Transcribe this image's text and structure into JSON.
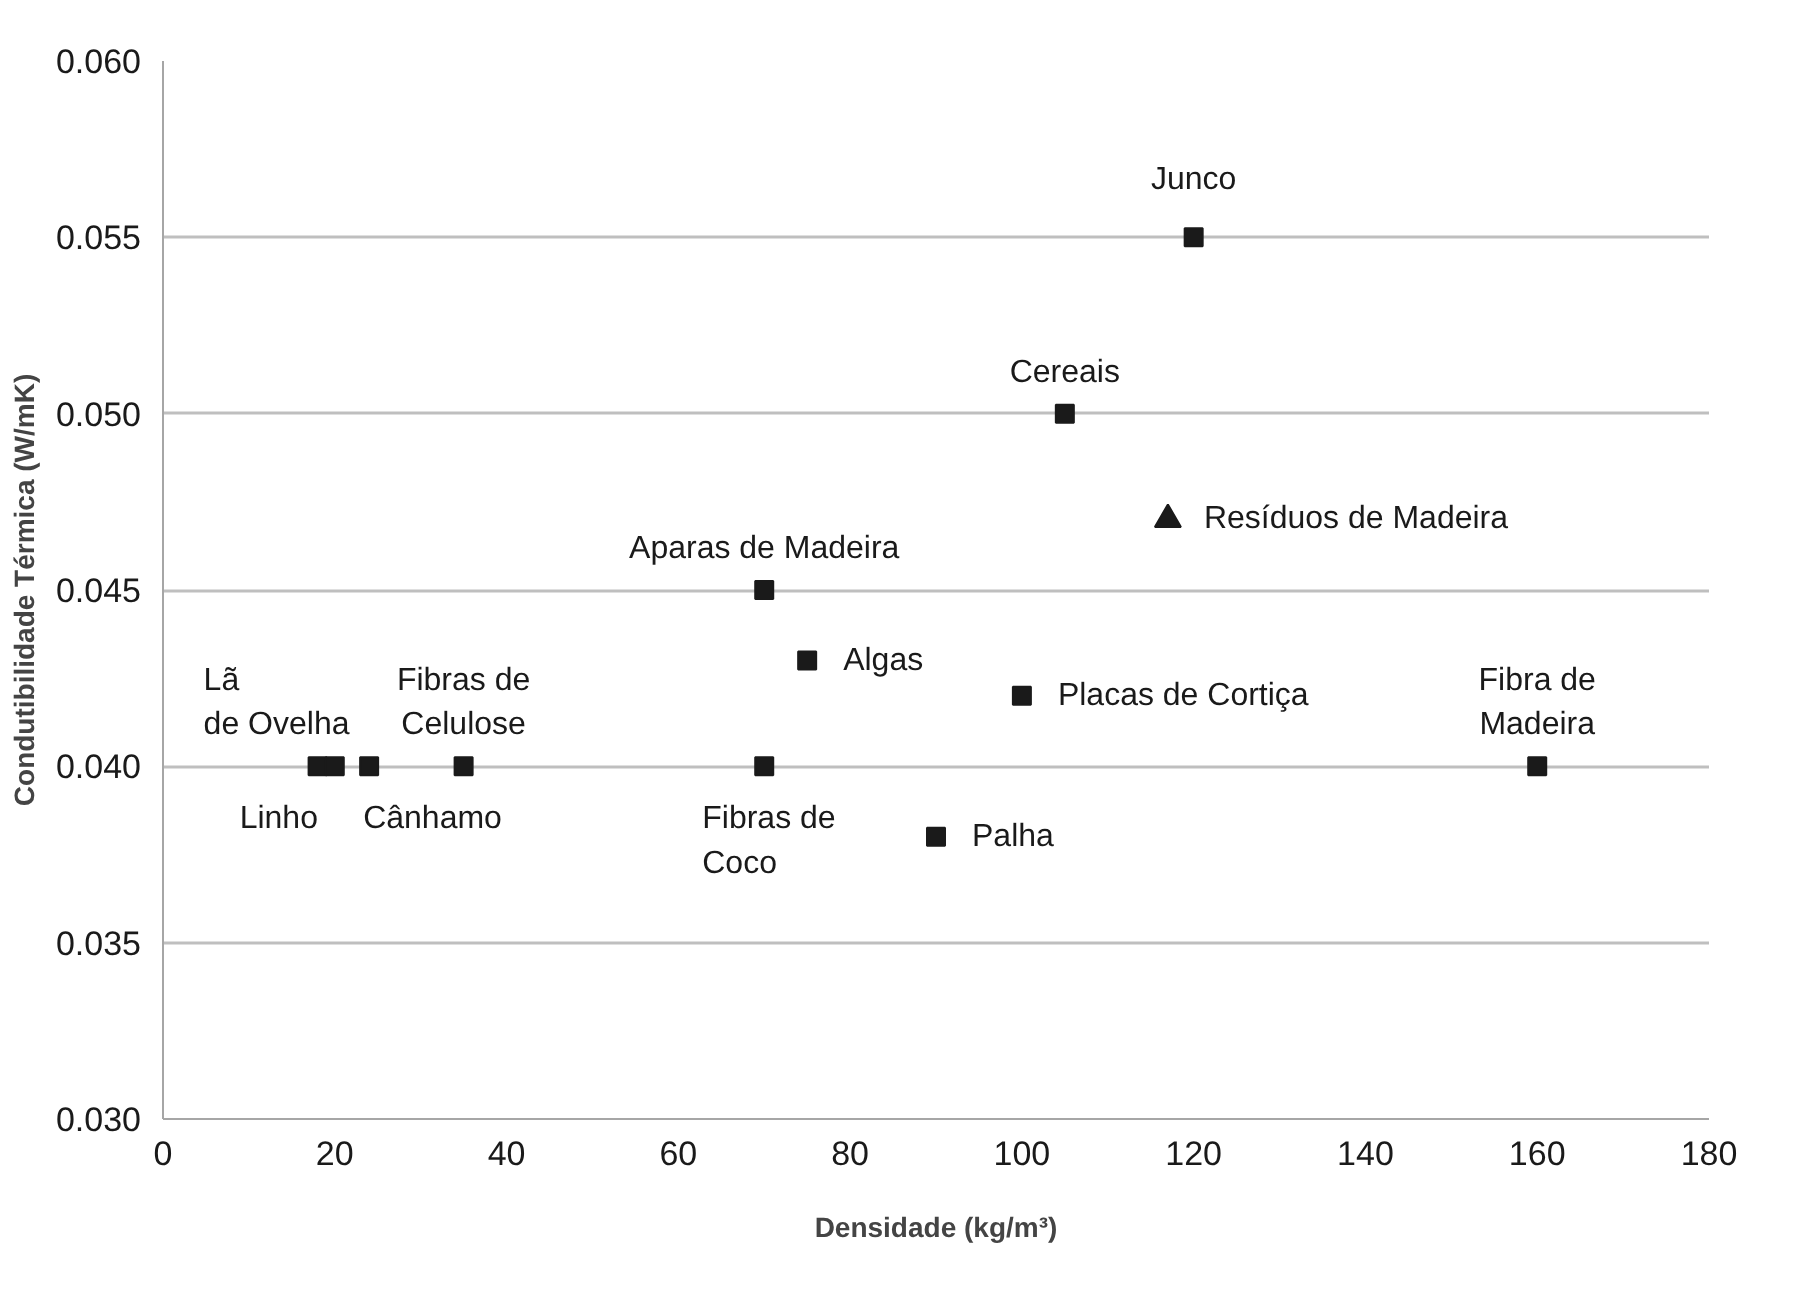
{
  "chart_data": {
    "type": "scatter",
    "xlabel": "Densidade (kg/m³)",
    "ylabel": "Condutibilidade Térmica (W/mK)",
    "series": [
      {
        "color": "#1a1a1a",
        "marker": "square",
        "x": [
          120,
          105,
          70,
          75,
          100,
          160,
          18,
          20,
          24,
          35,
          70,
          90
        ],
        "values": [
          0.055,
          0.05,
          0.045,
          0.043,
          0.042,
          0.04,
          0.04,
          0.04,
          0.04,
          0.04,
          0.04,
          0.038
        ]
      },
      {
        "color": "#1a1a1a",
        "marker": "triangle",
        "x": [
          117
        ],
        "values": [
          0.047
        ]
      }
    ],
    "xlim": [
      0,
      180
    ],
    "xticks": [
      0,
      20,
      40,
      60,
      80,
      100,
      120,
      140,
      160,
      180
    ],
    "ylim": [
      0.03,
      0.06
    ],
    "yticks": [
      {
        "value": 0.03,
        "label": "0.030"
      },
      {
        "value": 0.035,
        "label": "0.035"
      },
      {
        "value": 0.04,
        "label": "0.040"
      },
      {
        "value": 0.045,
        "label": "0.045"
      },
      {
        "value": 0.05,
        "label": "0.050"
      },
      {
        "value": 0.055,
        "label": "0.055"
      },
      {
        "value": 0.06,
        "label": "0.060"
      }
    ],
    "grid": "y",
    "annotations": [
      {
        "text": "Junco",
        "x": 120,
        "y": 0.055
      },
      {
        "text": "Cereais",
        "x": 105,
        "y": 0.05
      },
      {
        "text": "Resíduos de Madeira",
        "x": 117,
        "y": 0.047
      },
      {
        "text": "Aparas de Madeira",
        "x": 70,
        "y": 0.045
      },
      {
        "text": "Algas",
        "x": 75,
        "y": 0.043
      },
      {
        "text": "Placas de Cortiça",
        "x": 100,
        "y": 0.042
      },
      {
        "text": "Fibra de\nMadeira",
        "x": 160,
        "y": 0.04
      },
      {
        "text": "Lã\nde Ovelha",
        "x": 18,
        "y": 0.04
      },
      {
        "text": "Fibras de\nCelulose",
        "x": 35,
        "y": 0.04
      },
      {
        "text": "Linho",
        "x": 20,
        "y": 0.04
      },
      {
        "text": "Cânhamo",
        "x": 24,
        "y": 0.04
      },
      {
        "text": "Fibras de\nCoco",
        "x": 70,
        "y": 0.04
      },
      {
        "text": "Palha",
        "x": 90,
        "y": 0.038
      }
    ]
  }
}
